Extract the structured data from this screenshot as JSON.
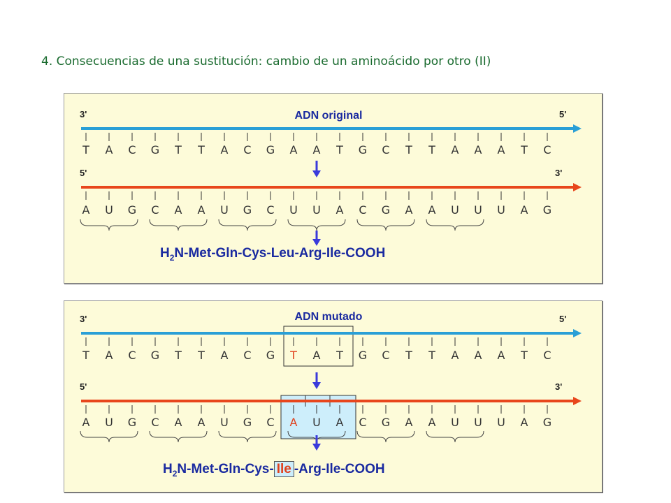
{
  "title": "4. Consecuencias de una sustitución: cambio de un aminoácido por otro (II)",
  "panels": [
    {
      "label": "ADN original",
      "top_end_left": "3'",
      "top_end_right": "5'",
      "bottom_end_left": "5'",
      "bottom_end_right": "3'",
      "dna": [
        "T",
        "A",
        "C",
        "G",
        "T",
        "T",
        "A",
        "C",
        "G",
        "A",
        "A",
        "T",
        "G",
        "C",
        "T",
        "T",
        "A",
        "A",
        "A",
        "T",
        "C"
      ],
      "mrna": [
        "A",
        "U",
        "G",
        "C",
        "A",
        "A",
        "U",
        "G",
        "C",
        "U",
        "U",
        "A",
        "C",
        "G",
        "A",
        "A",
        "U",
        "U",
        "U",
        "A",
        "G"
      ],
      "protein": {
        "prefix": "H",
        "sub": "2",
        "p1": "N-Met-Gln-Cys-",
        "aa": "Leu",
        "p2": "-Arg-Ile-COOH"
      },
      "highlight": false
    },
    {
      "label": "ADN mutado",
      "top_end_left": "3'",
      "top_end_right": "5'",
      "bottom_end_left": "5'",
      "bottom_end_right": "3'",
      "dna": [
        "T",
        "A",
        "C",
        "G",
        "T",
        "T",
        "A",
        "C",
        "G",
        "T",
        "A",
        "T",
        "G",
        "C",
        "T",
        "T",
        "A",
        "A",
        "A",
        "T",
        "C"
      ],
      "mrna": [
        "A",
        "U",
        "G",
        "C",
        "A",
        "A",
        "U",
        "G",
        "C",
        "A",
        "U",
        "A",
        "C",
        "G",
        "A",
        "A",
        "U",
        "U",
        "U",
        "A",
        "G"
      ],
      "protein": {
        "prefix": "H",
        "sub": "2",
        "p1": "N-Met-Gln-Cys-",
        "aa": "Ile",
        "p2": "-Arg-Ile-COOH"
      },
      "highlight": true,
      "mutation_index": 9
    }
  ],
  "colors": {
    "dna_strand": "#2a9fd6",
    "mrna_strand": "#e8461c",
    "arrow": "#3a3adb",
    "label": "#1a2aa0",
    "mutation": "#e0401c",
    "highlight_box": "#cdeefb"
  }
}
